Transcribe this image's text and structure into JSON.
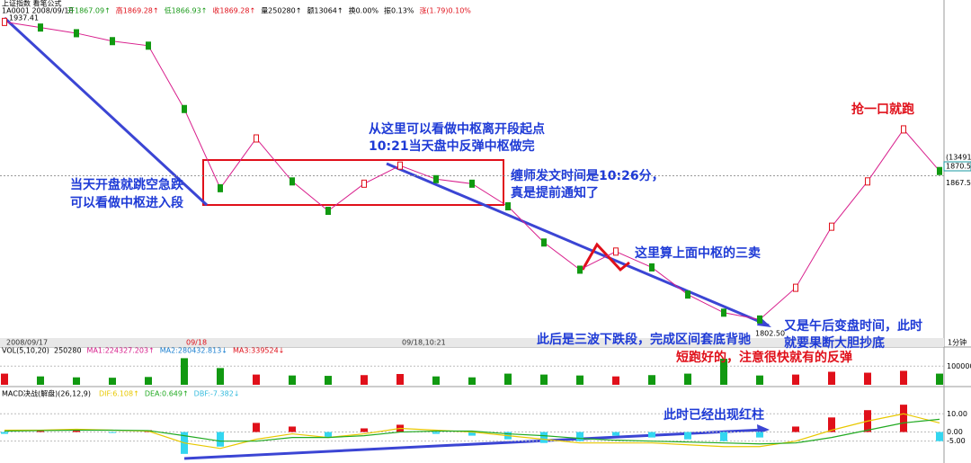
{
  "header": {
    "title": "上证指数 看笔公式",
    "code": "1A0001 2008/09/18",
    "quote": [
      "开1867.09↑",
      "高1869.28↑",
      "低1866.93↑",
      "收1869.28↑",
      "量250280↑",
      "额13064↑",
      "换0.00%",
      "振0.13%",
      "涨(1.79)0.10%"
    ],
    "high_label": "1937.41",
    "low_label": "1802.50",
    "last_price": "1870.59",
    "last_volume": "(13491)",
    "period": "1分钟"
  },
  "chart_data": [
    {
      "type": "line",
      "categories": [
        "2008/09/17",
        null,
        null,
        null,
        null,
        "09/18",
        null,
        null,
        null,
        null,
        null,
        "09/18,10:21",
        null,
        null,
        null,
        null,
        null,
        null,
        null,
        null,
        null,
        null,
        null,
        null,
        null,
        null,
        null
      ],
      "values": [
        1935.5,
        1933,
        1930.5,
        1927,
        1925,
        1897,
        1862,
        1884,
        1865,
        1852,
        1864,
        1872,
        1866,
        1864,
        1854,
        1838,
        1826,
        1834,
        1827,
        1815,
        1807,
        1804,
        1818,
        1845,
        1865,
        1888,
        1869.6
      ],
      "color": "#d81e8c",
      "ylim": [
        1795,
        1942
      ],
      "yticks": [
        1867.5
      ]
    },
    {
      "type": "bar",
      "title": "VOL(5,10,20)",
      "legend": [
        "250280",
        "MA1:224327.203↑",
        "MA2:280432.813↓",
        "MA3:339524↓"
      ],
      "values": [
        60000,
        45000,
        40000,
        38000,
        42000,
        143000,
        90000,
        55000,
        50000,
        48000,
        52000,
        58000,
        45000,
        40000,
        60000,
        55000,
        50000,
        45000,
        52000,
        60000,
        140000,
        50000,
        55000,
        70000,
        65000,
        75000,
        60000
      ],
      "ylim": [
        0,
        174000
      ],
      "yticks": [
        100000
      ]
    },
    {
      "type": "bar",
      "title": "MACD决战(解盘)(26,12,9)",
      "legend": [
        "DIF:6.108↑",
        "DEA:0.649↑",
        "DBF:-7.382↓"
      ],
      "values": [
        -1,
        0.5,
        1,
        -0.5,
        1,
        -12,
        -8,
        5,
        3,
        -3,
        2,
        4,
        -1,
        -2,
        -4,
        -6,
        -5,
        -2,
        -3,
        -4,
        -5,
        -3,
        3,
        8,
        12,
        15,
        -5
      ],
      "series": [
        {
          "color": "#e8c800",
          "values": [
            1,
            1,
            1.5,
            1,
            0.5,
            -6,
            -9,
            -4,
            -1,
            -3,
            -1,
            2,
            1,
            0,
            -2,
            -4,
            -6,
            -6,
            -6,
            -7,
            -8,
            -8,
            -5,
            1,
            6,
            10,
            5
          ]
        },
        {
          "color": "#22aa22",
          "values": [
            0.5,
            0.8,
            1,
            1,
            0.8,
            -2,
            -5,
            -5,
            -3,
            -3,
            -2,
            0,
            0.5,
            0.5,
            -1,
            -2,
            -3.5,
            -4.5,
            -5,
            -5.5,
            -6,
            -6.5,
            -6,
            -3,
            1,
            5,
            7
          ]
        }
      ],
      "ylim": [
        -17,
        20
      ],
      "yticks": [
        {
          "value": 10,
          "label": "10.00"
        },
        {
          "value": 0,
          "label": "0.00"
        },
        {
          "value": -5,
          "label": "-5.00"
        }
      ]
    }
  ],
  "annotations": [
    "从这里可以看做中枢离开段起点",
    "10:21当天盘中反弹中枢做完",
    "当天开盘就跳空急跌",
    "可以看做中枢进入段",
    "缠师发文时间是10:26分，",
    "真是提前通知了",
    "这里算上面中枢的三卖",
    "抢一口就跑",
    "又是午后变盘时间，此时",
    "就要果断大胆抄底",
    "此后是三波下跌段，完成区间套底背驰",
    "短跑好的，注意很快就有的反弹",
    "此时已经出现红柱"
  ]
}
